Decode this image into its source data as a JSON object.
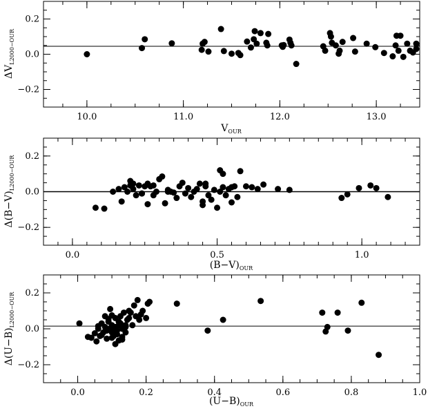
{
  "chart_data": [
    {
      "type": "scatter",
      "xlabel": "V",
      "xlabel_sub": "OUR",
      "ylabel": "ΔV",
      "ylabel_sub": "L2000−OUR",
      "xlim": [
        9.55,
        13.45
      ],
      "ylim": [
        -0.3,
        0.3
      ],
      "xticks": [
        10.0,
        11.0,
        12.0,
        13.0
      ],
      "xtick_labels": [
        "10.0",
        "11.0",
        "12.0",
        "13.0"
      ],
      "yticks": [
        -0.2,
        0.0,
        0.2
      ],
      "ytick_labels": [
        "−0.2",
        "0.0",
        "0.2"
      ],
      "reference_line": 0.045,
      "grid": false,
      "x": [
        10.0,
        10.57,
        10.6,
        10.88,
        11.19,
        11.2,
        11.22,
        11.26,
        11.39,
        11.42,
        11.5,
        11.57,
        11.59,
        11.66,
        11.7,
        11.73,
        11.74,
        11.76,
        11.8,
        11.86,
        11.87,
        11.88,
        12.02,
        12.03,
        12.04,
        12.1,
        12.11,
        12.12,
        12.17,
        12.45,
        12.47,
        12.52,
        12.53,
        12.54,
        12.58,
        12.61,
        12.62,
        12.65,
        12.76,
        12.78,
        12.9,
        12.99,
        13.08,
        13.17,
        13.2,
        13.21,
        13.23,
        13.25,
        13.28,
        13.32,
        13.35,
        13.38,
        13.42,
        13.45
      ],
      "y": [
        0.0,
        0.035,
        0.085,
        0.062,
        0.025,
        0.06,
        0.07,
        0.015,
        0.143,
        0.018,
        0.003,
        0.007,
        -0.005,
        0.072,
        0.038,
        0.085,
        0.131,
        0.06,
        0.12,
        0.065,
        0.05,
        0.115,
        0.05,
        0.042,
        0.052,
        0.083,
        0.065,
        0.05,
        -0.055,
        0.045,
        0.02,
        0.12,
        0.1,
        0.065,
        0.05,
        0.003,
        0.02,
        0.07,
        0.092,
        0.015,
        0.06,
        0.04,
        0.007,
        -0.012,
        0.05,
        0.105,
        0.02,
        0.105,
        -0.015,
        0.06,
        0.02,
        0.01,
        0.03,
        0.06
      ]
    },
    {
      "type": "scatter",
      "xlabel": "(B−V)",
      "xlabel_sub": "OUR",
      "ylabel": "Δ(B−V)",
      "ylabel_sub": "L2000−OUR",
      "xlim": [
        -0.1,
        1.2
      ],
      "ylim": [
        -0.3,
        0.3
      ],
      "xticks": [
        0.0,
        0.5,
        1.0
      ],
      "xtick_labels": [
        "0.0",
        "0.5",
        "1.0"
      ],
      "yticks": [
        -0.2,
        0.0,
        0.2
      ],
      "ytick_labels": [
        "−0.2",
        "0.0",
        "0.2"
      ],
      "reference_line": 0.0,
      "grid": false,
      "x": [
        0.08,
        0.11,
        0.14,
        0.16,
        0.17,
        0.18,
        0.19,
        0.2,
        0.21,
        0.22,
        0.23,
        0.24,
        0.25,
        0.26,
        0.27,
        0.28,
        0.29,
        0.3,
        0.31,
        0.32,
        0.33,
        0.34,
        0.36,
        0.37,
        0.38,
        0.39,
        0.4,
        0.41,
        0.42,
        0.43,
        0.44,
        0.45,
        0.46,
        0.47,
        0.48,
        0.49,
        0.5,
        0.51,
        0.52,
        0.53,
        0.54,
        0.55,
        0.56,
        0.57,
        0.58,
        0.6,
        0.62,
        0.64,
        0.66,
        0.71,
        0.75,
        0.93,
        0.95,
        0.99,
        1.03,
        1.05,
        1.09,
        0.21,
        0.24,
        0.26,
        0.35,
        0.45,
        0.51,
        0.52,
        0.55,
        0.33,
        0.46,
        0.2,
        0.28
      ],
      "y": [
        -0.09,
        -0.095,
        0.0,
        0.015,
        -0.055,
        0.025,
        0.0,
        0.06,
        0.045,
        -0.02,
        0.035,
        -0.01,
        0.03,
        -0.07,
        0.03,
        -0.02,
        0.0,
        0.07,
        0.085,
        -0.065,
        0.01,
        0.0,
        -0.035,
        0.03,
        0.05,
        -0.01,
        0.02,
        -0.03,
        0.0,
        0.015,
        0.045,
        -0.075,
        0.03,
        -0.02,
        -0.045,
        0.01,
        -0.09,
        0.12,
        0.025,
        -0.02,
        0.015,
        -0.06,
        0.03,
        -0.03,
        0.115,
        0.03,
        0.025,
        0.015,
        0.04,
        0.015,
        0.01,
        -0.035,
        -0.015,
        0.02,
        0.035,
        0.02,
        -0.03,
        0.015,
        -0.01,
        0.045,
        -0.005,
        -0.055,
        0.0,
        0.1,
        0.025,
        0.0,
        0.045,
        0.035,
        0.035
      ]
    },
    {
      "type": "scatter",
      "xlabel": "(U−B)",
      "xlabel_sub": "OUR",
      "ylabel": "Δ(U−B)",
      "ylabel_sub": "L2000−OUR",
      "xlim": [
        -0.1,
        1.0
      ],
      "ylim": [
        -0.3,
        0.3
      ],
      "xticks": [
        0.0,
        0.2,
        0.4,
        0.6,
        0.8,
        1.0
      ],
      "xtick_labels": [
        "0.0",
        "0.2",
        "0.4",
        "0.6",
        "0.8",
        "1.0"
      ],
      "yticks": [
        -0.2,
        0.0,
        0.2
      ],
      "ytick_labels": [
        "−0.2",
        "0.0",
        "0.2"
      ],
      "reference_line": 0.015,
      "grid": false,
      "x": [
        0.005,
        0.03,
        0.04,
        0.05,
        0.055,
        0.06,
        0.065,
        0.07,
        0.075,
        0.08,
        0.085,
        0.09,
        0.095,
        0.1,
        0.1,
        0.105,
        0.11,
        0.11,
        0.115,
        0.12,
        0.12,
        0.125,
        0.13,
        0.13,
        0.135,
        0.14,
        0.14,
        0.145,
        0.15,
        0.155,
        0.16,
        0.165,
        0.17,
        0.175,
        0.18,
        0.185,
        0.19,
        0.2,
        0.205,
        0.21,
        0.09,
        0.1,
        0.11,
        0.12,
        0.1,
        0.08,
        0.13,
        0.07,
        0.095,
        0.115,
        0.105,
        0.125,
        0.06,
        0.085,
        0.14,
        0.15,
        0.29,
        0.38,
        0.425,
        0.535,
        0.715,
        0.725,
        0.73,
        0.76,
        0.79,
        0.83,
        0.88
      ],
      "y": [
        0.03,
        -0.045,
        -0.05,
        -0.025,
        -0.07,
        0.0,
        -0.04,
        0.03,
        -0.02,
        0.07,
        -0.01,
        0.04,
        0.11,
        -0.05,
        0.02,
        0.0,
        -0.085,
        0.06,
        -0.03,
        0.02,
        -0.065,
        0.07,
        0.0,
        -0.045,
        0.09,
        0.02,
        -0.02,
        0.05,
        0.06,
        0.09,
        0.02,
        0.13,
        0.07,
        0.16,
        0.05,
        0.08,
        0.1,
        0.06,
        0.14,
        0.15,
        0.055,
        -0.02,
        0.01,
        0.04,
        0.075,
        0.01,
        -0.06,
        -0.035,
        0.0,
        -0.01,
        -0.04,
        0.03,
        0.015,
        -0.055,
        0.01,
        0.1,
        0.14,
        -0.01,
        0.05,
        0.155,
        0.09,
        -0.015,
        0.01,
        0.09,
        -0.01,
        0.145,
        -0.145
      ]
    }
  ]
}
